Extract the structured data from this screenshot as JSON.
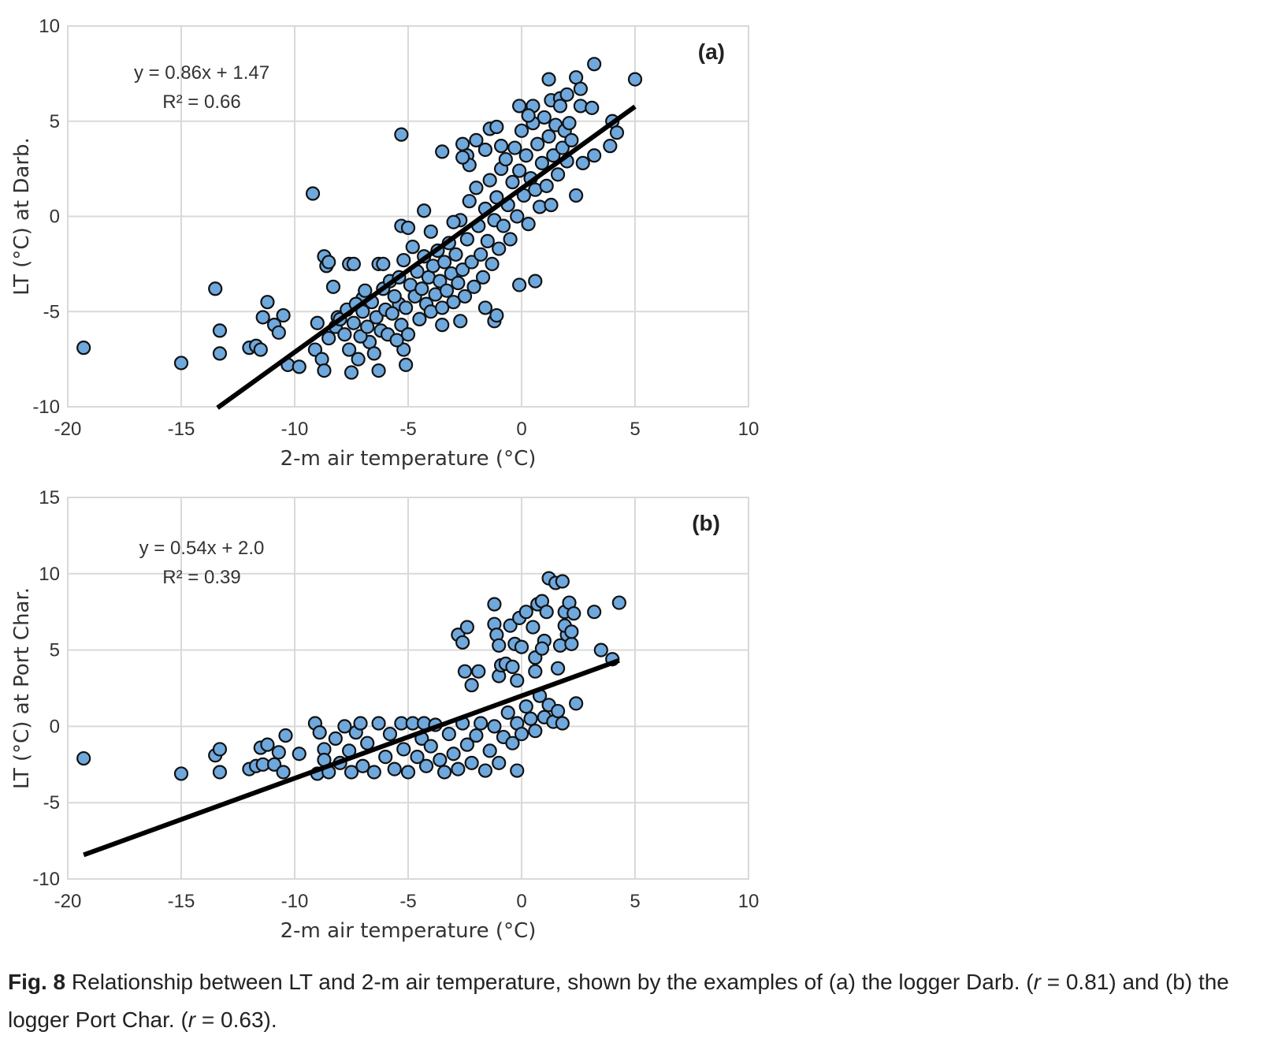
{
  "chart_data": [
    {
      "type": "scatter",
      "panel_label": "(a)",
      "xlabel": "2-m air temperature (°C)",
      "ylabel": "LT (°C) at Darb.",
      "xlim": [
        -20,
        10
      ],
      "ylim": [
        -10,
        10
      ],
      "xticks": [
        -20,
        -15,
        -10,
        -5,
        0,
        5,
        10
      ],
      "yticks": [
        -10,
        -5,
        0,
        5,
        10
      ],
      "grid": true,
      "marker_color": "#6fa8dc",
      "marker_edge": "#111111",
      "equation": "y = 0.86x + 1.47",
      "r2": "R² = 0.66",
      "trendline": {
        "slope": 0.86,
        "intercept": 1.47,
        "x_range": [
          -13.4,
          5
        ]
      },
      "points": [
        [
          -19.3,
          -6.9
        ],
        [
          -15,
          -7.7
        ],
        [
          -13.5,
          -3.8
        ],
        [
          -13.3,
          -6
        ],
        [
          -13.3,
          -7.2
        ],
        [
          -12,
          -6.9
        ],
        [
          -11.7,
          -6.8
        ],
        [
          -11.5,
          -7
        ],
        [
          -11.2,
          -4.5
        ],
        [
          -11.4,
          -5.3
        ],
        [
          -10.9,
          -5.7
        ],
        [
          -10.7,
          -6.1
        ],
        [
          -10.5,
          -5.2
        ],
        [
          -10.3,
          -7.8
        ],
        [
          -9.8,
          -7.9
        ],
        [
          -9.2,
          1.2
        ],
        [
          -9,
          -5.6
        ],
        [
          -9.1,
          -7
        ],
        [
          -8.8,
          -7.5
        ],
        [
          -8.7,
          -8.1
        ],
        [
          -8.7,
          -2.1
        ],
        [
          -8.6,
          -2.6
        ],
        [
          -8.5,
          -2.4
        ],
        [
          -8.3,
          -3.7
        ],
        [
          -8.1,
          -5.3
        ],
        [
          -7.6,
          -2.5
        ],
        [
          -7.4,
          -2.5
        ],
        [
          -7.5,
          -8.2
        ],
        [
          -7.2,
          -7.5
        ],
        [
          -7,
          -4.3
        ],
        [
          -6.7,
          -6.6
        ],
        [
          -6.3,
          -8.1
        ],
        [
          -6.3,
          -2.5
        ],
        [
          -6.1,
          -2.5
        ],
        [
          -5.3,
          4.3
        ],
        [
          -5.3,
          -0.5
        ],
        [
          -5,
          -0.6
        ],
        [
          -5.4,
          -4.6
        ],
        [
          -5.1,
          -7.8
        ],
        [
          -5.2,
          -7
        ],
        [
          -4.3,
          0.3
        ],
        [
          -4,
          -0.8
        ],
        [
          -3.5,
          3.4
        ],
        [
          -3.5,
          -5.7
        ],
        [
          -2.6,
          3.8
        ],
        [
          -2.4,
          3.2
        ],
        [
          -2.7,
          -5.5
        ],
        [
          -2,
          4
        ],
        [
          -1.6,
          3.5
        ],
        [
          -1.2,
          -5.5
        ],
        [
          -1.1,
          -5.2
        ],
        [
          -0.1,
          -3.6
        ],
        [
          0.6,
          -3.4
        ],
        [
          1.2,
          7.2
        ],
        [
          2.4,
          7.3
        ],
        [
          3.2,
          8
        ],
        [
          5,
          7.2
        ],
        [
          2.6,
          6.7
        ],
        [
          2.6,
          5.8
        ],
        [
          3.1,
          5.7
        ],
        [
          4,
          5
        ],
        [
          4.2,
          4.4
        ],
        [
          3.9,
          3.7
        ],
        [
          2.7,
          2.8
        ],
        [
          3.2,
          3.2
        ],
        [
          2.4,
          1.1
        ],
        [
          -0.1,
          5.8
        ],
        [
          0.5,
          5.8
        ],
        [
          1.3,
          6.1
        ],
        [
          1.7,
          6.2
        ],
        [
          2,
          6.4
        ],
        [
          -8.5,
          -6.4
        ],
        [
          -8.2,
          -5.8
        ],
        [
          -8,
          -5.4
        ],
        [
          -7.8,
          -6.2
        ],
        [
          -7.7,
          -4.9
        ],
        [
          -7.6,
          -7
        ],
        [
          -7.4,
          -5.6
        ],
        [
          -7.3,
          -4.6
        ],
        [
          -7.1,
          -6.3
        ],
        [
          -7,
          -5
        ],
        [
          -6.9,
          -3.9
        ],
        [
          -6.8,
          -5.8
        ],
        [
          -6.6,
          -4.5
        ],
        [
          -6.5,
          -7.2
        ],
        [
          -6.4,
          -5.3
        ],
        [
          -6.2,
          -6
        ],
        [
          -6.1,
          -3.8
        ],
        [
          -6,
          -4.9
        ],
        [
          -5.9,
          -6.2
        ],
        [
          -5.8,
          -3.4
        ],
        [
          -5.7,
          -5.1
        ],
        [
          -5.6,
          -4.2
        ],
        [
          -5.5,
          -6.5
        ],
        [
          -5.4,
          -3.2
        ],
        [
          -5.3,
          -5.7
        ],
        [
          -5.2,
          -2.3
        ],
        [
          -5.1,
          -4.8
        ],
        [
          -5,
          -6.2
        ],
        [
          -4.9,
          -3.6
        ],
        [
          -4.8,
          -1.6
        ],
        [
          -4.7,
          -4.2
        ],
        [
          -4.6,
          -2.9
        ],
        [
          -4.5,
          -5.4
        ],
        [
          -4.4,
          -3.8
        ],
        [
          -4.3,
          -2.1
        ],
        [
          -4.2,
          -4.6
        ],
        [
          -4.1,
          -3.2
        ],
        [
          -4,
          -5
        ],
        [
          -3.9,
          -2.6
        ],
        [
          -3.8,
          -4.1
        ],
        [
          -3.7,
          -1.8
        ],
        [
          -3.6,
          -3.4
        ],
        [
          -3.5,
          -4.8
        ],
        [
          -3.4,
          -2.4
        ],
        [
          -3.3,
          -3.9
        ],
        [
          -3.2,
          -1.4
        ],
        [
          -3.1,
          -3
        ],
        [
          -3,
          -4.5
        ],
        [
          -2.9,
          -2
        ],
        [
          -2.8,
          -3.5
        ],
        [
          -2.7,
          -0.2
        ],
        [
          -2.6,
          -2.8
        ],
        [
          -2.5,
          -4.2
        ],
        [
          -2.4,
          -1.2
        ],
        [
          -2.3,
          0.8
        ],
        [
          -2.2,
          -2.4
        ],
        [
          -2.1,
          -3.7
        ],
        [
          -2,
          1.5
        ],
        [
          -1.9,
          -0.5
        ],
        [
          -1.8,
          -2
        ],
        [
          -1.7,
          -3.2
        ],
        [
          -1.6,
          0.4
        ],
        [
          -1.5,
          -1.3
        ],
        [
          -1.4,
          1.9
        ],
        [
          -1.3,
          -2.5
        ],
        [
          -1.2,
          -0.2
        ],
        [
          -1.1,
          1
        ],
        [
          -1,
          -1.7
        ],
        [
          -0.9,
          2.5
        ],
        [
          -0.8,
          -0.5
        ],
        [
          -0.7,
          3
        ],
        [
          -0.6,
          0.6
        ],
        [
          -0.5,
          -1.2
        ],
        [
          -0.4,
          1.8
        ],
        [
          -0.3,
          3.6
        ],
        [
          -0.2,
          0
        ],
        [
          -0.1,
          2.4
        ],
        [
          0,
          4.5
        ],
        [
          0.1,
          1.1
        ],
        [
          0.2,
          3.2
        ],
        [
          0.3,
          -0.4
        ],
        [
          0.4,
          2
        ],
        [
          0.5,
          4.9
        ],
        [
          0.6,
          1.4
        ],
        [
          0.7,
          3.8
        ],
        [
          0.8,
          0.5
        ],
        [
          0.9,
          2.8
        ],
        [
          1,
          5.2
        ],
        [
          1.1,
          1.6
        ],
        [
          1.2,
          4.2
        ],
        [
          1.3,
          0.6
        ],
        [
          1.4,
          3.2
        ],
        [
          1.5,
          4.8
        ],
        [
          1.6,
          2.2
        ],
        [
          1.7,
          5.8
        ],
        [
          1.8,
          3.6
        ],
        [
          1.9,
          4.5
        ],
        [
          2,
          2.9
        ],
        [
          2.1,
          4.9
        ],
        [
          2.2,
          4
        ],
        [
          -1.4,
          4.6
        ],
        [
          -1.1,
          4.7
        ],
        [
          -2.3,
          2.7
        ],
        [
          -2.6,
          3.1
        ],
        [
          -3,
          -0.3
        ],
        [
          -0.9,
          3.7
        ],
        [
          -1.6,
          -4.8
        ],
        [
          0.3,
          5.3
        ]
      ]
    },
    {
      "type": "scatter",
      "panel_label": "(b)",
      "xlabel": "2-m air temperature (°C)",
      "ylabel": "LT (°C) at Port Char.",
      "xlim": [
        -20,
        10
      ],
      "ylim": [
        -10,
        15
      ],
      "xticks": [
        -20,
        -15,
        -10,
        -5,
        0,
        5,
        10
      ],
      "yticks": [
        -10,
        -5,
        0,
        5,
        10,
        15
      ],
      "grid": true,
      "marker_color": "#6fa8dc",
      "marker_edge": "#111111",
      "equation": "y = 0.54x + 2.0",
      "r2": "R² = 0.39",
      "trendline": {
        "slope": 0.54,
        "intercept": 2.0,
        "x_range": [
          -19.3,
          4.3
        ]
      },
      "points": [
        [
          -19.3,
          -2.1
        ],
        [
          -15,
          -3.1
        ],
        [
          -13.5,
          -1.9
        ],
        [
          -13.3,
          -1.5
        ],
        [
          -13.3,
          -3
        ],
        [
          -12,
          -2.8
        ],
        [
          -11.7,
          -2.6
        ],
        [
          -11.5,
          -1.4
        ],
        [
          -11.2,
          -1.2
        ],
        [
          -11.4,
          -2.5
        ],
        [
          -10.9,
          -2.5
        ],
        [
          -10.7,
          -1.7
        ],
        [
          -10.5,
          -3
        ],
        [
          -10.4,
          -0.6
        ],
        [
          -9.8,
          -1.8
        ],
        [
          -9.1,
          0.2
        ],
        [
          -9,
          -3.1
        ],
        [
          -8.9,
          -0.4
        ],
        [
          -8.7,
          -1.5
        ],
        [
          -8.7,
          -2.2
        ],
        [
          -8.5,
          -3
        ],
        [
          -8.2,
          -0.8
        ],
        [
          -8,
          -2.4
        ],
        [
          -7.8,
          0
        ],
        [
          -7.6,
          -1.6
        ],
        [
          -7.5,
          -3
        ],
        [
          -7.3,
          -0.4
        ],
        [
          -7.1,
          0.2
        ],
        [
          -7,
          -2.6
        ],
        [
          -6.8,
          -1.1
        ],
        [
          -6.5,
          -3
        ],
        [
          -6.3,
          0.2
        ],
        [
          -6,
          -2
        ],
        [
          -5.8,
          -0.5
        ],
        [
          -5.6,
          -2.8
        ],
        [
          -5.3,
          0.2
        ],
        [
          -5.2,
          -1.5
        ],
        [
          -5,
          -3
        ],
        [
          -4.8,
          0.2
        ],
        [
          -4.6,
          -2
        ],
        [
          -4.4,
          -0.8
        ],
        [
          -4.3,
          0.2
        ],
        [
          -4.2,
          -2.6
        ],
        [
          -4,
          -1.3
        ],
        [
          -3.8,
          0.1
        ],
        [
          -3.6,
          -2.2
        ],
        [
          -3.4,
          -3
        ],
        [
          -3.2,
          -0.5
        ],
        [
          -3,
          -1.8
        ],
        [
          -2.8,
          -2.8
        ],
        [
          -2.6,
          0.2
        ],
        [
          -2.4,
          -1.2
        ],
        [
          -2.2,
          -2.4
        ],
        [
          -2,
          -0.6
        ],
        [
          -1.8,
          0.2
        ],
        [
          -1.6,
          -2.9
        ],
        [
          -1.4,
          -1.6
        ],
        [
          -1.2,
          0
        ],
        [
          -1,
          -2.4
        ],
        [
          -0.8,
          -0.7
        ],
        [
          -0.6,
          0.9
        ],
        [
          -0.4,
          -1.1
        ],
        [
          -0.2,
          0.2
        ],
        [
          0,
          -0.5
        ],
        [
          0.2,
          1.3
        ],
        [
          0.4,
          0.5
        ],
        [
          0.6,
          -0.3
        ],
        [
          0.8,
          2
        ],
        [
          1,
          0.6
        ],
        [
          1.2,
          1.4
        ],
        [
          1.4,
          0.3
        ],
        [
          1.6,
          1
        ],
        [
          1.8,
          0.2
        ],
        [
          2.4,
          1.5
        ],
        [
          -0.2,
          -2.9
        ],
        [
          -2.8,
          6
        ],
        [
          -2.6,
          5.5
        ],
        [
          -2.4,
          6.5
        ],
        [
          -2.5,
          3.6
        ],
        [
          -2.2,
          2.7
        ],
        [
          -1.9,
          3.6
        ],
        [
          -1.2,
          8
        ],
        [
          -1.2,
          6.7
        ],
        [
          -1.1,
          6
        ],
        [
          -1,
          5.3
        ],
        [
          -1,
          3.3
        ],
        [
          -0.9,
          4
        ],
        [
          -0.7,
          4.1
        ],
        [
          -0.5,
          6.6
        ],
        [
          -0.4,
          3.9
        ],
        [
          -0.3,
          5.4
        ],
        [
          -0.2,
          3
        ],
        [
          -0.1,
          7.1
        ],
        [
          0,
          5.2
        ],
        [
          0.2,
          7.5
        ],
        [
          0.5,
          6.5
        ],
        [
          0.6,
          4.5
        ],
        [
          0.7,
          8
        ],
        [
          0.9,
          8.2
        ],
        [
          1,
          5.6
        ],
        [
          1.1,
          7.5
        ],
        [
          0.6,
          3.6
        ],
        [
          1.2,
          9.7
        ],
        [
          1.5,
          9.4
        ],
        [
          1.8,
          9.5
        ],
        [
          1.6,
          3.8
        ],
        [
          1.7,
          5.3
        ],
        [
          1.9,
          7.5
        ],
        [
          2,
          6
        ],
        [
          2.1,
          8.1
        ],
        [
          2.2,
          5.4
        ],
        [
          2.3,
          7.4
        ],
        [
          3.2,
          7.5
        ],
        [
          3.5,
          5
        ],
        [
          4,
          4.4
        ],
        [
          4.3,
          8.1
        ],
        [
          1.9,
          6.6
        ],
        [
          2.2,
          6.2
        ],
        [
          0.9,
          5.1
        ]
      ]
    }
  ],
  "caption": {
    "label": "Fig. 8",
    "text_1": " Relationship between LT and 2-m air temperature, shown by the examples of (a) the logger Darb. (",
    "r_symbol": "r",
    "text_2": " = 0.81) and (b) the logger Port Char. (",
    "r_symbol_2": "r",
    "text_3": " = 0.63)."
  }
}
